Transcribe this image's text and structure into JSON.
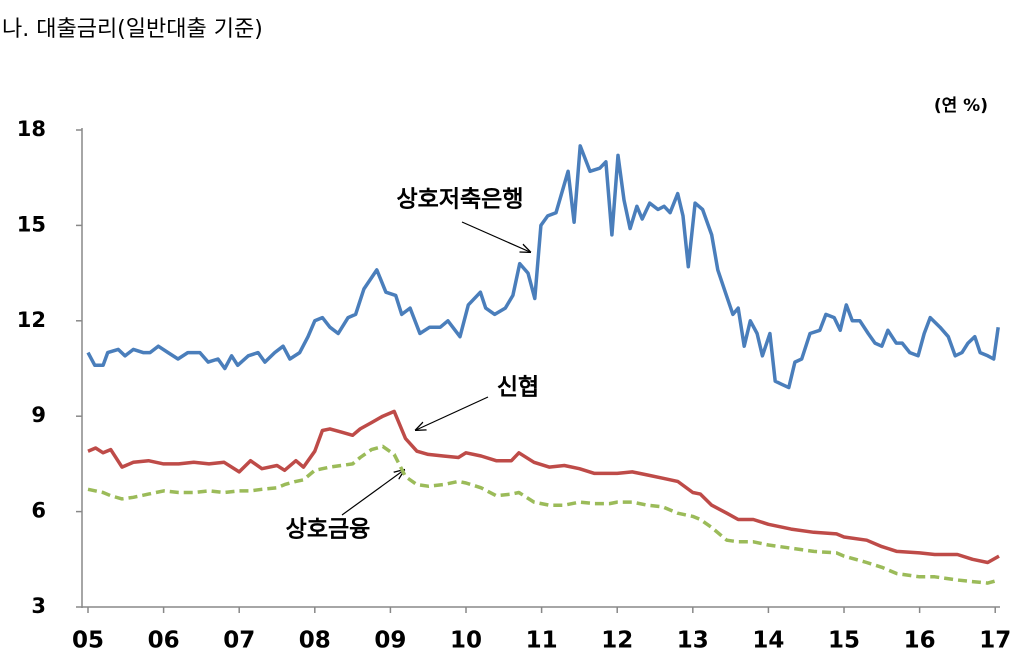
{
  "chart_data": {
    "type": "line",
    "title": "나.  대출금리(일반대출 기준)",
    "y_label": "(연 %)",
    "xlim": [
      5,
      17.05
    ],
    "ylim": [
      3,
      18
    ],
    "xticks": [
      {
        "value": 5,
        "label": "05"
      },
      {
        "value": 6,
        "label": "06"
      },
      {
        "value": 7,
        "label": "07"
      },
      {
        "value": 8,
        "label": "08"
      },
      {
        "value": 9,
        "label": "09"
      },
      {
        "value": 10,
        "label": "10"
      },
      {
        "value": 11,
        "label": "11"
      },
      {
        "value": 12,
        "label": "12"
      },
      {
        "value": 13,
        "label": "13"
      },
      {
        "value": 14,
        "label": "14"
      },
      {
        "value": 15,
        "label": "15"
      },
      {
        "value": 16,
        "label": "16"
      },
      {
        "value": 17,
        "label": "17"
      }
    ],
    "yticks": [
      3,
      6,
      9,
      12,
      15,
      18
    ],
    "series": [
      {
        "name": "상호저축은행",
        "color": "#4a7ebb",
        "dashed": false,
        "x": [
          5.0,
          5.09,
          5.2,
          5.26,
          5.4,
          5.49,
          5.6,
          5.73,
          5.82,
          5.93,
          6.06,
          6.19,
          6.32,
          6.48,
          6.59,
          6.72,
          6.81,
          6.9,
          6.98,
          7.12,
          7.25,
          7.34,
          7.47,
          7.58,
          7.67,
          7.8,
          7.91,
          8.0,
          8.1,
          8.2,
          8.31,
          8.44,
          8.54,
          8.65,
          8.82,
          8.94,
          9.07,
          9.15,
          9.26,
          9.39,
          9.52,
          9.66,
          9.76,
          9.92,
          10.03,
          10.19,
          10.26,
          10.38,
          10.52,
          10.62,
          10.71,
          10.82,
          10.91,
          10.99,
          11.08,
          11.19,
          11.35,
          11.43,
          11.51,
          11.64,
          11.77,
          11.85,
          11.93,
          12.01,
          12.09,
          12.17,
          12.26,
          12.33,
          12.43,
          12.54,
          12.62,
          12.7,
          12.8,
          12.87,
          12.94,
          13.03,
          13.13,
          13.25,
          13.33,
          13.43,
          13.53,
          13.6,
          13.68,
          13.76,
          13.85,
          13.92,
          14.02,
          14.09,
          14.18,
          14.27,
          14.35,
          14.44,
          14.55,
          14.68,
          14.76,
          14.87,
          14.95,
          15.03,
          15.11,
          15.21,
          15.32,
          15.41,
          15.5,
          15.58,
          15.69,
          15.77,
          15.87,
          15.98,
          16.06,
          16.14,
          16.27,
          16.38,
          16.47,
          16.56,
          16.64,
          16.73,
          16.8,
          16.9,
          16.98,
          17.04
        ],
        "values": [
          11.0,
          10.6,
          10.6,
          11.0,
          11.1,
          10.9,
          11.1,
          11.0,
          11.0,
          11.2,
          11.0,
          10.8,
          11.0,
          11.0,
          10.7,
          10.8,
          10.5,
          10.9,
          10.6,
          10.9,
          11.0,
          10.7,
          11.0,
          11.2,
          10.8,
          11.0,
          11.5,
          12.0,
          12.1,
          11.8,
          11.6,
          12.1,
          12.2,
          13.0,
          13.6,
          12.9,
          12.8,
          12.2,
          12.4,
          11.6,
          11.8,
          11.8,
          12.0,
          11.5,
          12.5,
          12.9,
          12.4,
          12.2,
          12.4,
          12.8,
          13.8,
          13.5,
          12.7,
          15.0,
          15.3,
          15.4,
          16.7,
          15.1,
          17.5,
          16.7,
          16.8,
          17.0,
          14.7,
          17.2,
          15.8,
          14.9,
          15.6,
          15.2,
          15.7,
          15.5,
          15.6,
          15.4,
          16.0,
          15.3,
          13.7,
          15.7,
          15.5,
          14.7,
          13.6,
          12.9,
          12.2,
          12.4,
          11.2,
          12.0,
          11.6,
          10.9,
          11.6,
          10.1,
          10.0,
          9.9,
          10.7,
          10.8,
          11.6,
          11.7,
          12.2,
          12.1,
          11.7,
          12.5,
          12.0,
          12.0,
          11.6,
          11.3,
          11.2,
          11.7,
          11.3,
          11.3,
          11.0,
          10.9,
          11.6,
          12.1,
          11.8,
          11.5,
          10.9,
          11.0,
          11.3,
          11.5,
          11.0,
          10.9,
          10.8,
          11.8
        ]
      },
      {
        "name": "신협",
        "color": "#be4b48",
        "dashed": false,
        "x": [
          5.0,
          5.1,
          5.2,
          5.3,
          5.45,
          5.6,
          5.8,
          6.0,
          6.2,
          6.4,
          6.6,
          6.8,
          7.0,
          7.15,
          7.3,
          7.5,
          7.6,
          7.75,
          7.85,
          8.0,
          8.1,
          8.2,
          8.35,
          8.5,
          8.6,
          8.75,
          8.9,
          9.05,
          9.2,
          9.35,
          9.5,
          9.7,
          9.9,
          10.0,
          10.2,
          10.4,
          10.6,
          10.7,
          10.9,
          11.1,
          11.3,
          11.5,
          11.7,
          11.9,
          12.0,
          12.2,
          12.4,
          12.6,
          12.8,
          13.0,
          13.1,
          13.25,
          13.45,
          13.6,
          13.8,
          14.0,
          14.3,
          14.6,
          14.9,
          15.0,
          15.3,
          15.5,
          15.7,
          16.0,
          16.2,
          16.5,
          16.7,
          16.9,
          17.05
        ],
        "values": [
          7.9,
          8.0,
          7.85,
          7.95,
          7.4,
          7.55,
          7.6,
          7.5,
          7.5,
          7.55,
          7.5,
          7.55,
          7.25,
          7.6,
          7.35,
          7.45,
          7.3,
          7.6,
          7.4,
          7.9,
          8.55,
          8.6,
          8.5,
          8.4,
          8.6,
          8.8,
          9.0,
          9.15,
          8.3,
          7.9,
          7.8,
          7.75,
          7.7,
          7.85,
          7.75,
          7.6,
          7.6,
          7.85,
          7.55,
          7.4,
          7.45,
          7.35,
          7.2,
          7.2,
          7.2,
          7.25,
          7.15,
          7.05,
          6.95,
          6.6,
          6.55,
          6.2,
          5.95,
          5.75,
          5.75,
          5.6,
          5.45,
          5.35,
          5.3,
          5.2,
          5.1,
          4.9,
          4.75,
          4.7,
          4.65,
          4.65,
          4.5,
          4.4,
          4.6
        ]
      },
      {
        "name": "상호금융",
        "color": "#9bbb59",
        "dashed": true,
        "x": [
          5.0,
          5.1,
          5.2,
          5.3,
          5.45,
          5.6,
          5.8,
          6.0,
          6.2,
          6.4,
          6.6,
          6.8,
          7.0,
          7.15,
          7.3,
          7.5,
          7.6,
          7.75,
          7.85,
          8.0,
          8.1,
          8.2,
          8.35,
          8.5,
          8.6,
          8.75,
          8.9,
          9.05,
          9.2,
          9.35,
          9.5,
          9.7,
          9.9,
          10.0,
          10.2,
          10.4,
          10.6,
          10.7,
          10.9,
          11.1,
          11.3,
          11.5,
          11.7,
          11.9,
          12.0,
          12.2,
          12.4,
          12.6,
          12.8,
          13.0,
          13.1,
          13.25,
          13.45,
          13.6,
          13.8,
          14.0,
          14.3,
          14.6,
          14.9,
          15.0,
          15.3,
          15.5,
          15.7,
          16.0,
          16.2,
          16.5,
          16.7,
          16.9,
          17.05
        ],
        "values": [
          6.7,
          6.65,
          6.6,
          6.5,
          6.4,
          6.45,
          6.55,
          6.65,
          6.6,
          6.6,
          6.65,
          6.6,
          6.65,
          6.65,
          6.7,
          6.75,
          6.85,
          6.95,
          7.0,
          7.3,
          7.35,
          7.4,
          7.45,
          7.5,
          7.7,
          7.95,
          8.05,
          7.8,
          7.1,
          6.85,
          6.8,
          6.85,
          6.95,
          6.9,
          6.75,
          6.5,
          6.55,
          6.6,
          6.3,
          6.2,
          6.2,
          6.3,
          6.25,
          6.25,
          6.3,
          6.3,
          6.2,
          6.15,
          5.95,
          5.85,
          5.75,
          5.5,
          5.1,
          5.05,
          5.05,
          4.95,
          4.85,
          4.75,
          4.7,
          4.6,
          4.4,
          4.25,
          4.05,
          3.95,
          3.95,
          3.85,
          3.8,
          3.75,
          3.85
        ]
      }
    ]
  }
}
